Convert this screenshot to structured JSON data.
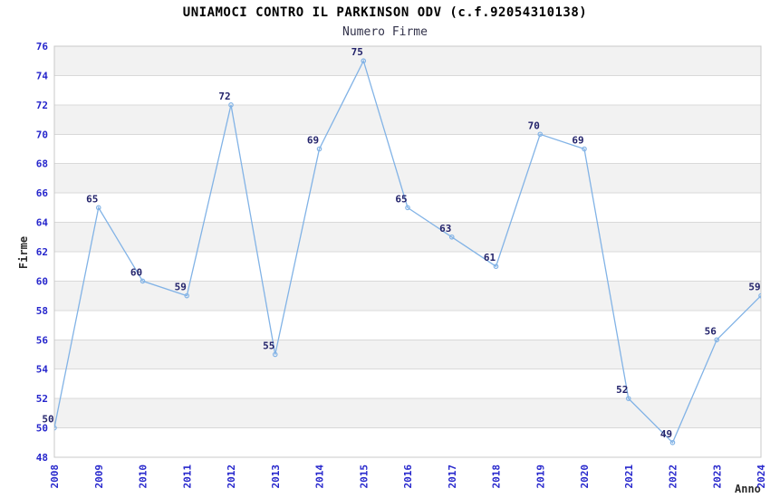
{
  "chart_data": {
    "type": "line",
    "title": "UNIAMOCI CONTRO IL PARKINSON ODV (c.f.92054310138)",
    "subtitle": "Numero Firme",
    "xlabel": "Anno",
    "ylabel": "Firme",
    "categories": [
      "2008",
      "2009",
      "2010",
      "2011",
      "2012",
      "2013",
      "2014",
      "2015",
      "2016",
      "2017",
      "2018",
      "2019",
      "2020",
      "2021",
      "2022",
      "2023",
      "2024"
    ],
    "series": [
      {
        "name": "Numero Firme",
        "values": [
          50,
          65,
          60,
          59,
          72,
          55,
          69,
          75,
          65,
          63,
          61,
          70,
          69,
          52,
          49,
          56,
          59
        ]
      }
    ],
    "ylim": [
      48,
      76
    ],
    "ytick_step": 2,
    "grid": "horizontal",
    "banded_background": true,
    "legend_position": "none",
    "colors": {
      "line": "#82b3e6",
      "tick_label": "#2626cc",
      "data_label": "#23236b",
      "band": "#f2f2f2",
      "band_alt": "#ffffff",
      "gridline": "#d9d9d9",
      "plot_border": "#c8c8c8",
      "title": "#000000",
      "subtitle": "#32324a",
      "axis_title": "#2b2b2b",
      "background": "#ffffff"
    }
  }
}
